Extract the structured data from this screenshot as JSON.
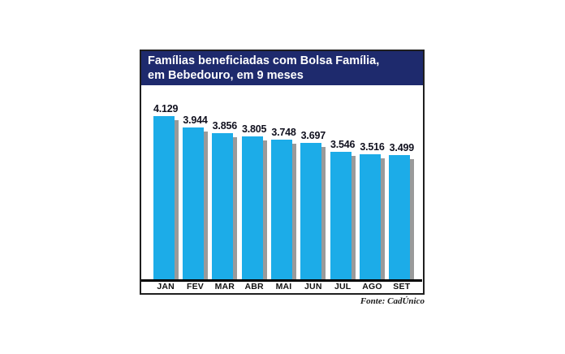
{
  "chart_data": {
    "type": "bar",
    "title": "Famílias beneficiadas com Bolsa Família, em Bebedouro, em 9 meses",
    "title_line1": "Famílias beneficiadas com Bolsa Família,",
    "title_line2": "em Bebedouro, em 9 meses",
    "categories": [
      "JAN",
      "FEV",
      "MAR",
      "ABR",
      "MAI",
      "JUN",
      "JUL",
      "AGO",
      "SET"
    ],
    "values": [
      4129,
      3944,
      3856,
      3805,
      3748,
      3697,
      3546,
      3516,
      3499
    ],
    "values_formatted": [
      "4.129",
      "3.944",
      "3.856",
      "3.805",
      "3.748",
      "3.697",
      "3.546",
      "3.516",
      "3.499"
    ],
    "xlabel": "",
    "ylabel": "",
    "grid": false,
    "legend": null,
    "ylim": [
      1490,
      4626
    ],
    "source_label": "Fonte: CadÚnico"
  },
  "colors": {
    "header-bg": "#1E2A6D",
    "header-text": "#FFFFFF",
    "bar-fill": "#1CACE8",
    "bar-shadow": "#9A9A9A",
    "box-border": "#1F1F1F",
    "axis-line": "#000000",
    "value-text": "#10101E",
    "month-text": "#111111",
    "source-text": "#1A1A1A"
  }
}
